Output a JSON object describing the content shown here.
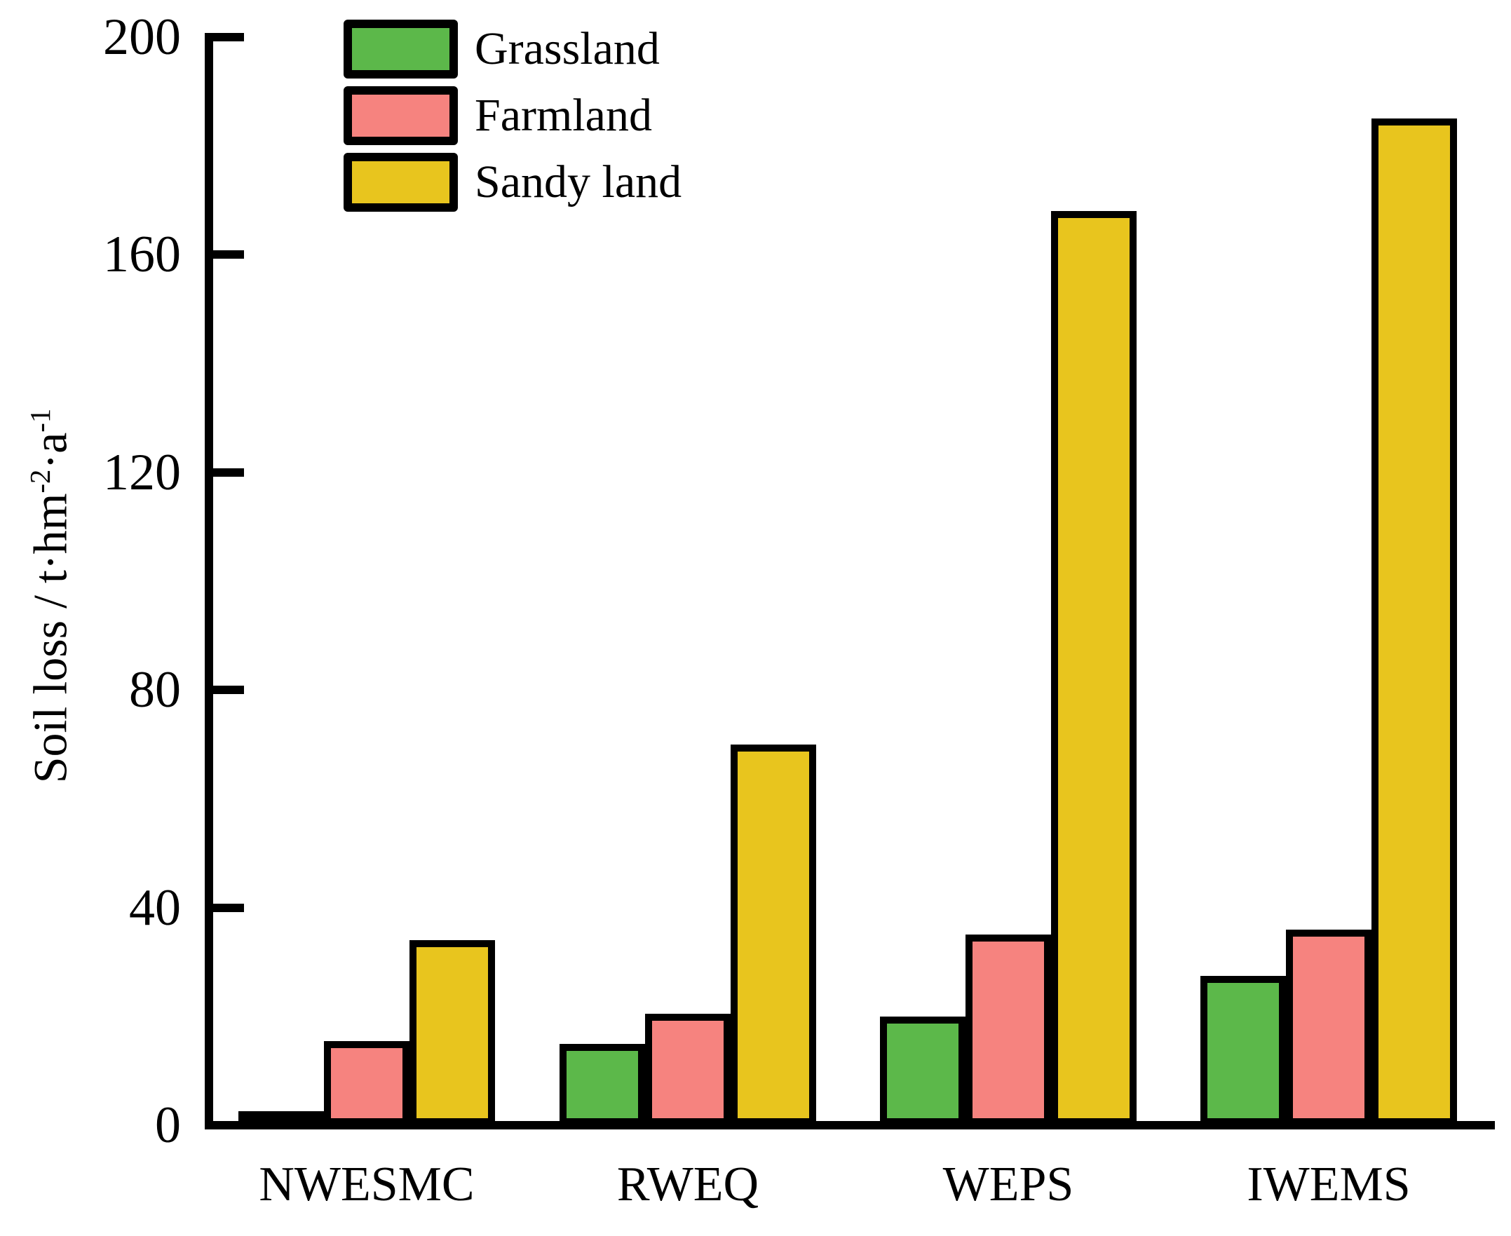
{
  "chart_data": {
    "type": "bar",
    "title": "",
    "categories": [
      "NWESMC",
      "RWEQ",
      "WEPS",
      "IWEMS"
    ],
    "series": [
      {
        "name": "Grassland",
        "color": "#5CB84A",
        "values": [
          1.5,
          15,
          20,
          27.5
        ]
      },
      {
        "name": "Farmland",
        "color": "#F6837F",
        "values": [
          15.5,
          20.5,
          35,
          36
        ]
      },
      {
        "name": "Sandy land",
        "color": "#E8C51E",
        "values": [
          34,
          70,
          168,
          185
        ]
      }
    ],
    "xlabel": "",
    "ylabel": "Soil loss / t·hm⁻²·a⁻¹",
    "ylabel_parts": {
      "base1": "Soil loss / t·hm",
      "sup1": "-2",
      "base2": "·a",
      "sup2": "-1"
    },
    "yticks": [
      "0",
      "40",
      "80",
      "120",
      "160",
      "200"
    ],
    "ylim": [
      0,
      200
    ],
    "legend_position": "top-left",
    "grid": false,
    "axis_color": "#000000",
    "background_color": "#FFFFFF"
  }
}
